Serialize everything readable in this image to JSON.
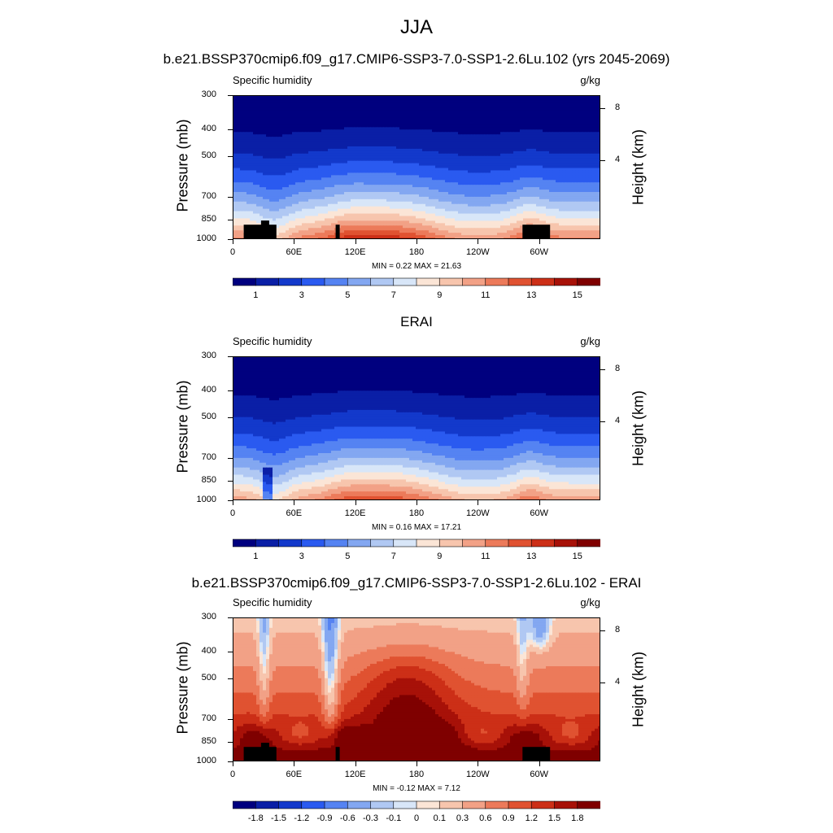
{
  "page_title": "JJA",
  "chart_data": [
    {
      "type": "heatmap",
      "title": "b.e21.BSSP370cmip6.f09_g17.CMIP6-SSP3-7.0-SSP1-2.6Lu.102 (yrs 2045-2069)",
      "left_string": "Specific humidity",
      "right_string": "g/kg",
      "ylabel": "Pressure (mb)",
      "ylabel_right": "Height (km)",
      "y_ticks": [
        "300",
        "400",
        "500",
        "700",
        "850",
        "1000"
      ],
      "y_values": [
        300,
        400,
        500,
        700,
        850,
        1000
      ],
      "right_ticks": [
        "8",
        "4"
      ],
      "x_ticks": [
        "0",
        "60E",
        "120E",
        "180",
        "120W",
        "60W"
      ],
      "min_max": "MIN =   0.22  MAX =  21.63",
      "min": 0.22,
      "max": 21.63,
      "colorbar_labels": [
        "1",
        "3",
        "5",
        "7",
        "9",
        "11",
        "13",
        "15"
      ],
      "field": "full"
    },
    {
      "type": "heatmap",
      "title": "ERAI",
      "left_string": "Specific humidity",
      "right_string": "g/kg",
      "ylabel": "Pressure (mb)",
      "ylabel_right": "Height (km)",
      "y_ticks": [
        "300",
        "400",
        "500",
        "700",
        "850",
        "1000"
      ],
      "y_values": [
        300,
        400,
        500,
        700,
        850,
        1000
      ],
      "right_ticks": [
        "8",
        "4"
      ],
      "x_ticks": [
        "0",
        "60E",
        "120E",
        "180",
        "120W",
        "60W"
      ],
      "min_max": "MIN =   0.16  MAX =  17.21",
      "min": 0.16,
      "max": 17.21,
      "colorbar_labels": [
        "1",
        "3",
        "5",
        "7",
        "9",
        "11",
        "13",
        "15"
      ],
      "field": "full"
    },
    {
      "type": "heatmap",
      "title": "b.e21.BSSP370cmip6.f09_g17.CMIP6-SSP3-7.0-SSP1-2.6Lu.102 - ERAI",
      "left_string": "Specific humidity",
      "right_string": "g/kg",
      "ylabel": "Pressure (mb)",
      "ylabel_right": "Height (km)",
      "y_ticks": [
        "300",
        "400",
        "500",
        "700",
        "850",
        "1000"
      ],
      "y_values": [
        300,
        400,
        500,
        700,
        850,
        1000
      ],
      "right_ticks": [
        "8",
        "4"
      ],
      "x_ticks": [
        "0",
        "60E",
        "120E",
        "180",
        "120W",
        "60W"
      ],
      "min_max": "MIN =  -0.12  MAX =   7.12",
      "min": -0.12,
      "max": 7.12,
      "colorbar_labels": [
        "-1.8",
        "-1.5",
        "-1.2",
        "-0.9",
        "-0.6",
        "-0.3",
        "-0.1",
        "0",
        "0.1",
        "0.3",
        "0.6",
        "0.9",
        "1.2",
        "1.5",
        "1.8"
      ],
      "field": "diff"
    }
  ],
  "palette_full": [
    "#00007f",
    "#0a1fa6",
    "#1339cb",
    "#2a5af0",
    "#5583f2",
    "#83a7f1",
    "#b0c8f3",
    "#d8e6f8",
    "#fbe5d6",
    "#f7c5ad",
    "#f2a186",
    "#ec7a5a",
    "#e05231",
    "#cc2f17",
    "#a71108",
    "#7f0000"
  ],
  "palette_diff": [
    "#00007f",
    "#0a1fa6",
    "#1339cb",
    "#2a5af0",
    "#5583f2",
    "#83a7f1",
    "#b0c8f3",
    "#d8e6f8",
    "#fbe5d6",
    "#f7c5ad",
    "#f2a186",
    "#ec7a5a",
    "#e05231",
    "#cc2f17",
    "#a71108",
    "#7f0000"
  ]
}
